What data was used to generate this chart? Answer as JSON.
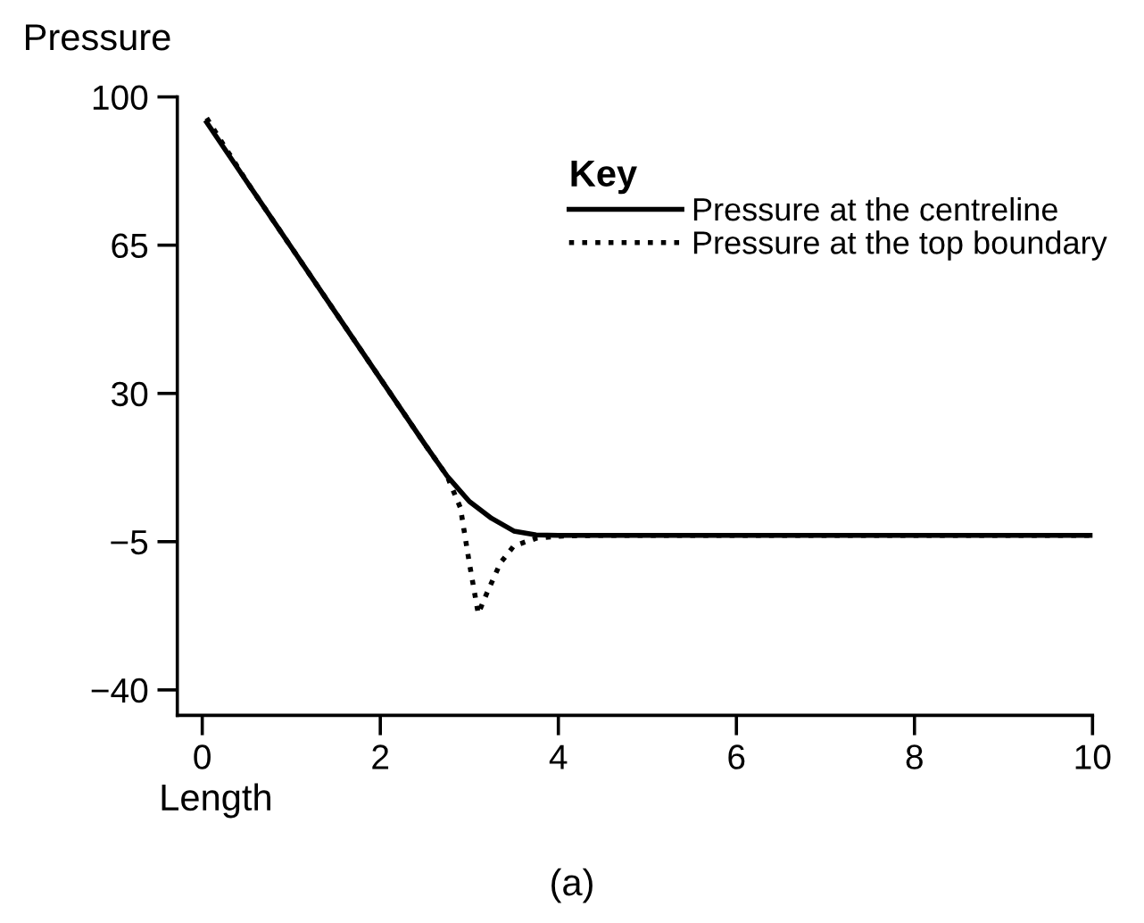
{
  "chart_data": {
    "type": "line",
    "xlabel": "Length",
    "ylabel": "Pressure",
    "legend_title": "Key",
    "annotations": [
      "(a)"
    ],
    "xlim": [
      -0.28,
      10
    ],
    "ylim": [
      -46,
      100
    ],
    "xticks": [
      0,
      2,
      4,
      6,
      8,
      10
    ],
    "yticks": [
      100,
      65,
      30,
      {
        "value": -5,
        "label": "−5"
      },
      {
        "value": -40,
        "label": "−40"
      }
    ],
    "grid": false,
    "legend": "top right",
    "series": [
      {
        "name": "Pressure at the centreline",
        "color": "#000000",
        "line_style": "solid",
        "x": [
          0.05,
          0.5,
          1,
          1.5,
          2,
          2.5,
          2.75,
          3.0,
          3.25,
          3.5,
          3.75,
          4,
          6,
          8,
          10
        ],
        "values": [
          94,
          80,
          64.5,
          49,
          33.5,
          18,
          10.5,
          4.5,
          0.5,
          -2.5,
          -3.4,
          -3.5,
          -3.5,
          -3.5,
          -3.5
        ]
      },
      {
        "name": "Pressure at the top boundary",
        "color": "#000000",
        "line_style": "dotted",
        "x": [
          0.05,
          0.5,
          1,
          1.5,
          2,
          2.5,
          2.75,
          2.9,
          3.0,
          3.1,
          3.2,
          3.35,
          3.5,
          3.75,
          4,
          4.5,
          6,
          8,
          10
        ],
        "values": [
          95,
          80,
          64.5,
          49,
          33.5,
          18,
          10.5,
          3,
          -10,
          -22,
          -17,
          -10,
          -6,
          -4.2,
          -3.7,
          -3.5,
          -3.5,
          -3.5,
          -3.5
        ]
      }
    ]
  }
}
